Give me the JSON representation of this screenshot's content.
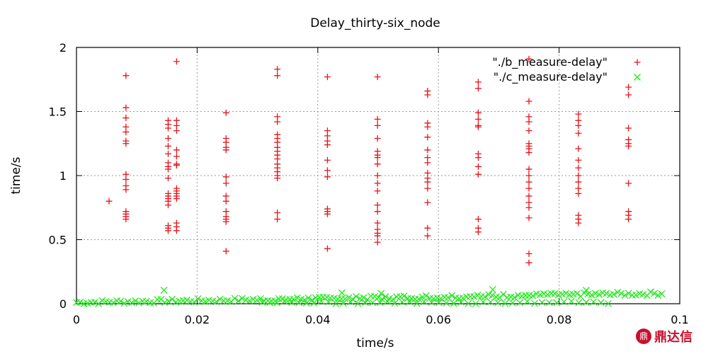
{
  "chart_data": {
    "type": "scatter",
    "title": "Delay_thirty-six_node",
    "xlabel": "time/s",
    "ylabel": "time/s",
    "xlim": [
      0,
      0.1
    ],
    "ylim": [
      0,
      2
    ],
    "xticks": [
      0,
      0.02,
      0.04,
      0.06,
      0.08,
      0.1
    ],
    "xtick_labels": [
      "0",
      "0.02",
      "0.04",
      "0.06",
      "0.08",
      "0.1"
    ],
    "yticks": [
      0,
      0.5,
      1,
      1.5,
      2
    ],
    "ytick_labels": [
      "0",
      "0.5",
      "1",
      "1.5",
      "2"
    ],
    "grid": true,
    "legend_position": "top-right",
    "series": [
      {
        "name": "\"./b_measure-delay\"",
        "marker": "plus",
        "color": "#e8141a",
        "columns": [
          {
            "x": 0.0054,
            "y": [
              0.8
            ]
          },
          {
            "x": 0.0082,
            "y": [
              1.78,
              1.53,
              1.45,
              1.38,
              1.34,
              1.27,
              1.25,
              1.01,
              0.97,
              0.92,
              0.89,
              0.72,
              0.7,
              0.68,
              0.66
            ]
          },
          {
            "x": 0.0152,
            "y": [
              1.43,
              1.4,
              1.37,
              1.29,
              1.23,
              1.17,
              1.1,
              1.07,
              1.05,
              0.98,
              0.86,
              0.84,
              0.82,
              0.8,
              0.77,
              0.61,
              0.59,
              0.57
            ]
          },
          {
            "x": 0.0166,
            "y": [
              1.89,
              1.43,
              1.39,
              1.35,
              1.2,
              1.15,
              1.09,
              1.08,
              0.9,
              0.88,
              0.86,
              0.84,
              0.82,
              0.63,
              0.6,
              0.57
            ]
          },
          {
            "x": 0.0248,
            "y": [
              1.49,
              1.29,
              1.26,
              1.22,
              1.2,
              0.99,
              0.94,
              0.84,
              0.8,
              0.72,
              0.68,
              0.66,
              0.64,
              0.41
            ]
          },
          {
            "x": 0.0333,
            "y": [
              1.83,
              1.78,
              1.46,
              1.42,
              1.32,
              1.29,
              1.26,
              1.22,
              1.19,
              1.16,
              1.13,
              1.09,
              1.06,
              1.03,
              1.0,
              0.98,
              0.71,
              0.66
            ]
          },
          {
            "x": 0.0416,
            "y": [
              1.77,
              1.35,
              1.31,
              1.27,
              1.24,
              1.12,
              1.04,
              0.99,
              0.74,
              0.72,
              0.7,
              0.43
            ]
          },
          {
            "x": 0.0499,
            "y": [
              1.77,
              1.44,
              1.39,
              1.29,
              1.19,
              1.16,
              1.14,
              1.09,
              1.0,
              0.94,
              0.88,
              0.77,
              0.72,
              0.63,
              0.58,
              0.55,
              0.53,
              0.48
            ]
          },
          {
            "x": 0.0582,
            "y": [
              1.66,
              1.63,
              1.41,
              1.38,
              1.3,
              1.2,
              1.14,
              1.1,
              1.02,
              0.98,
              0.95,
              0.9,
              0.79,
              0.59,
              0.53
            ]
          },
          {
            "x": 0.0666,
            "y": [
              1.73,
              1.68,
              1.49,
              1.44,
              1.39,
              1.38,
              1.17,
              1.14,
              1.07,
              1.01,
              0.66,
              0.59,
              0.56
            ]
          },
          {
            "x": 0.075,
            "y": [
              1.91,
              1.58,
              1.46,
              1.42,
              1.35,
              1.25,
              1.23,
              1.21,
              1.18,
              1.05,
              1.0,
              0.95,
              0.9,
              0.84,
              0.79,
              0.75,
              0.67,
              0.39,
              0.32
            ]
          },
          {
            "x": 0.0832,
            "y": [
              1.48,
              1.43,
              1.39,
              1.33,
              1.21,
              1.12,
              1.06,
              1.0,
              0.95,
              0.9,
              0.86,
              0.69,
              0.66,
              0.63
            ]
          },
          {
            "x": 0.0915,
            "y": [
              1.69,
              1.63,
              1.37,
              1.28,
              1.25,
              1.23,
              0.94,
              0.72,
              0.69,
              0.66
            ]
          }
        ]
      },
      {
        "name": "\"./c_measure-delay\"",
        "marker": "cross",
        "color": "#23e81e",
        "note": "dense low band",
        "band_x": [
          0.0,
          0.097
        ],
        "band_y_start": 0.01,
        "band_y_end": 0.08,
        "outliers": [
          {
            "x": 0.0145,
            "y": 0.105
          },
          {
            "x": 0.069,
            "y": 0.11
          },
          {
            "x": 0.0845,
            "y": 0.105
          },
          {
            "x": 0.0505,
            "y": 0.08
          },
          {
            "x": 0.044,
            "y": 0.085
          }
        ]
      }
    ]
  },
  "watermark": {
    "logo_text": "鼎",
    "text": "鼎达信"
  }
}
